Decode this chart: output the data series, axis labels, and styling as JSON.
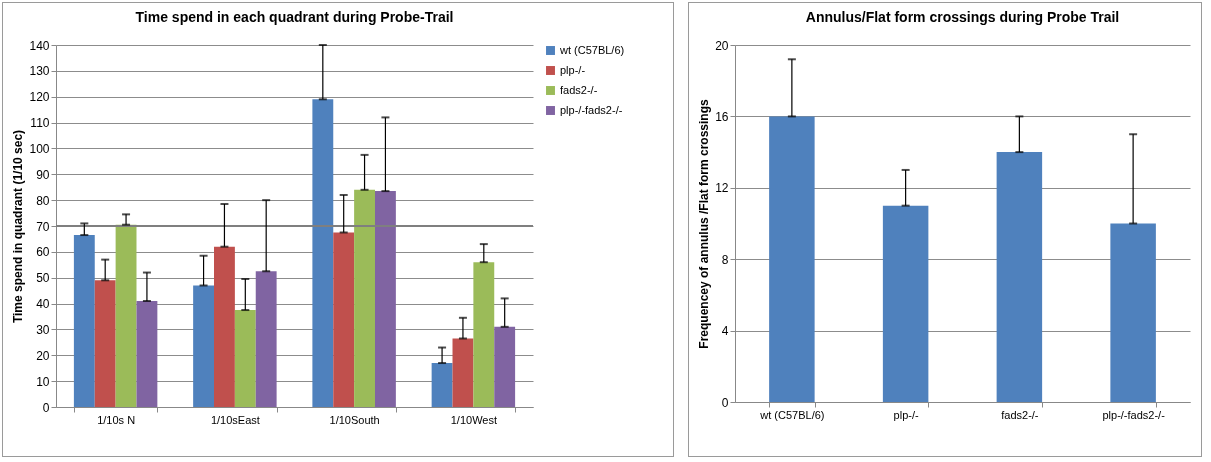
{
  "chart_data": [
    {
      "type": "bar",
      "title": "Time spend in each quadrant  during  Probe-Trail",
      "ylabel": "Time spend in quadrant (1/10 sec)",
      "categories": [
        "1/10s N",
        "1/10sEast",
        "1/10South",
        "1/10West"
      ],
      "series": [
        {
          "name": "wt (C57BL/6)",
          "color": "#4f81bd",
          "values": [
            66.5,
            47,
            119,
            17
          ],
          "errors": [
            [
              66.5,
              71
            ],
            [
              47,
              58.5
            ],
            [
              119,
              140
            ],
            [
              17,
              23
            ]
          ]
        },
        {
          "name": "plp-/-",
          "color": "#c0504d",
          "values": [
            49,
            62,
            67.5,
            26.5
          ],
          "errors": [
            [
              49,
              57
            ],
            [
              62,
              78.5
            ],
            [
              67.5,
              82
            ],
            [
              26.5,
              34.5
            ]
          ]
        },
        {
          "name": "fads2-/-",
          "color": "#9bbb59",
          "values": [
            70.5,
            37.5,
            84,
            56
          ],
          "errors": [
            [
              70.5,
              74.5
            ],
            [
              37.5,
              49.5
            ],
            [
              84,
              97.5
            ],
            [
              56,
              63
            ]
          ]
        },
        {
          "name": "plp-/-fads2-/-",
          "color": "#8064a2",
          "values": [
            41,
            52.5,
            83.5,
            31
          ],
          "errors": [
            [
              41,
              52
            ],
            [
              52.5,
              80
            ],
            [
              83.5,
              112
            ],
            [
              31,
              42
            ]
          ]
        }
      ],
      "ylim": [
        0,
        140
      ],
      "yticks": [
        0,
        10,
        20,
        30,
        40,
        50,
        60,
        70,
        80,
        90,
        100,
        110,
        120,
        130,
        140
      ],
      "grid": "y",
      "legend": "right",
      "ref_lines": [
        {
          "axis": "y",
          "value": 70,
          "color": "#7f7f7f"
        }
      ]
    },
    {
      "type": "bar",
      "title": "Annulus/Flat form crossings during Probe Trail",
      "ylabel": "Frequencey of annulus /Flat form crossings",
      "categories": [
        "wt (C57BL/6)",
        "plp-/-",
        "fads2-/-",
        "plp-/-fads2-/-"
      ],
      "values": [
        16,
        11,
        14,
        10
      ],
      "errors": [
        [
          16,
          19.2
        ],
        [
          11,
          13
        ],
        [
          14,
          16
        ],
        [
          10,
          15
        ]
      ],
      "color": "#4f81bd",
      "ylim": [
        0,
        20
      ],
      "yticks": [
        0,
        4,
        8,
        12,
        16,
        20
      ],
      "grid": "y"
    }
  ]
}
